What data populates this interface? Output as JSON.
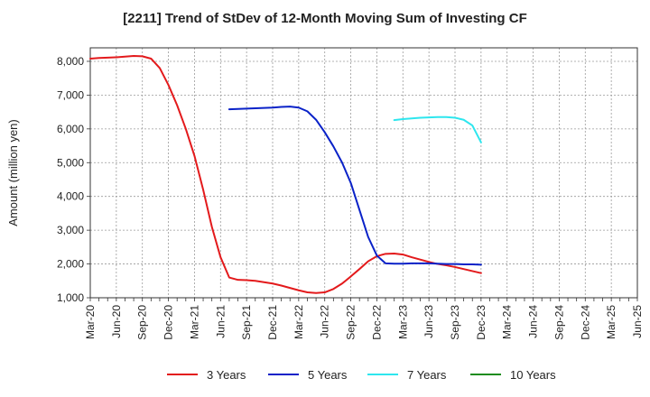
{
  "chart_data": {
    "type": "line",
    "title": "[2211]  Trend of StDev of 12-Month Moving Sum of Investing CF",
    "ylabel": "Amount (million yen)",
    "xlabel": "",
    "ylim": [
      1000,
      8400
    ],
    "yticks": [
      1000,
      2000,
      3000,
      4000,
      5000,
      6000,
      7000,
      8000
    ],
    "ytick_labels": [
      "1,000",
      "2,000",
      "3,000",
      "4,000",
      "5,000",
      "6,000",
      "7,000",
      "8,000"
    ],
    "xticks": [
      "Mar-20",
      "Jun-20",
      "Sep-20",
      "Dec-20",
      "Mar-21",
      "Jun-21",
      "Sep-21",
      "Dec-21",
      "Mar-22",
      "Jun-22",
      "Sep-22",
      "Dec-22",
      "Mar-23",
      "Jun-23",
      "Sep-23",
      "Dec-23",
      "Mar-24",
      "Jun-24",
      "Sep-24",
      "Dec-24",
      "Mar-25",
      "Jun-25"
    ],
    "grid": true,
    "legend_position": "bottom",
    "series": [
      {
        "name": "3 Years",
        "color": "#e31a1c",
        "start_index": 0,
        "values": [
          8080,
          8100,
          8110,
          8120,
          8140,
          8160,
          8150,
          8080,
          7800,
          7300,
          6700,
          6000,
          5200,
          4200,
          3100,
          2200,
          1600,
          1530,
          1520,
          1500,
          1460,
          1420,
          1360,
          1290,
          1220,
          1160,
          1140,
          1160,
          1260,
          1420,
          1630,
          1850,
          2080,
          2230,
          2300,
          2310,
          2280,
          2200,
          2130,
          2060,
          2000,
          1960,
          1910,
          1850,
          1790,
          1730
        ]
      },
      {
        "name": "5 Years",
        "color": "#0a22c8",
        "start_index": 16,
        "values": [
          6580,
          6590,
          6600,
          6610,
          6620,
          6630,
          6650,
          6660,
          6630,
          6520,
          6270,
          5900,
          5480,
          5000,
          4400,
          3600,
          2800,
          2250,
          2020,
          2010,
          2010,
          2020,
          2020,
          2020,
          2010,
          2000,
          2000,
          1990,
          1990,
          1980
        ]
      },
      {
        "name": "7 Years",
        "color": "#2ee6ee",
        "start_index": 35,
        "values": [
          6260,
          6290,
          6310,
          6330,
          6340,
          6350,
          6350,
          6330,
          6270,
          6100,
          5600
        ]
      },
      {
        "name": "10 Years",
        "color": "#1e8c1e",
        "start_index": 0,
        "values": []
      }
    ]
  }
}
